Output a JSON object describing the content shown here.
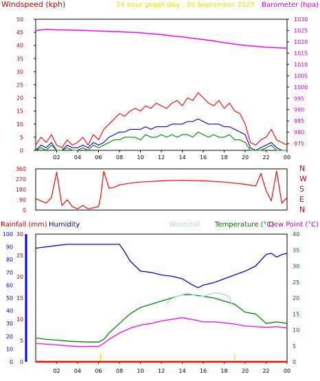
{
  "chart_data": [
    {
      "type": "line",
      "header": {
        "left": "Windspeed (kph)",
        "center": "24 hour graph day : 10 September 2025",
        "right": "Barometer (hpa)"
      },
      "left_axis": {
        "ticks": [
          0,
          5,
          10,
          15,
          20,
          25,
          30,
          35,
          40,
          45,
          50
        ],
        "range": [
          0,
          50
        ]
      },
      "right_axis": {
        "ticks": [
          975,
          980,
          985,
          990,
          995,
          1000,
          1005,
          1010,
          1015,
          1020,
          1025,
          1030
        ],
        "range": [
          972,
          1030
        ]
      },
      "x_ticks": [
        "02",
        "04",
        "06",
        "08",
        "10",
        "12",
        "14",
        "16",
        "18",
        "20",
        "22",
        "00"
      ],
      "series": [
        {
          "color": "#ff0000",
          "axis": "left",
          "x": [
            0,
            0.5,
            1,
            1.5,
            2,
            2.5,
            3,
            3.5,
            4,
            4.5,
            5,
            5.5,
            6,
            6.5,
            7,
            7.5,
            8,
            8.5,
            9,
            9.5,
            10,
            10.5,
            11,
            11.5,
            12,
            12.5,
            13,
            13.5,
            14,
            14.5,
            15,
            15.5,
            16,
            16.5,
            17,
            17.5,
            18,
            18.5,
            19,
            19.5,
            20,
            20.5,
            21,
            21.5,
            22,
            22.5,
            23,
            23.5,
            24
          ],
          "values": [
            2,
            5,
            3,
            6,
            2,
            1,
            4,
            2,
            3,
            5,
            2,
            6,
            4,
            8,
            10,
            12,
            14,
            13,
            15,
            16,
            15,
            17,
            16,
            18,
            17,
            16,
            18,
            19,
            17,
            20,
            19,
            22,
            20,
            18,
            17,
            19,
            16,
            18,
            15,
            14,
            10,
            3,
            2,
            4,
            5,
            8,
            4,
            3,
            2
          ]
        },
        {
          "color": "#0000cc",
          "axis": "left",
          "x": [
            0,
            0.5,
            1,
            1.5,
            2,
            2.5,
            3,
            3.5,
            4,
            4.5,
            5,
            5.5,
            6,
            6.5,
            7,
            7.5,
            8,
            8.5,
            9,
            9.5,
            10,
            10.5,
            11,
            11.5,
            12,
            12.5,
            13,
            13.5,
            14,
            14.5,
            15,
            15.5,
            16,
            16.5,
            17,
            17.5,
            18,
            18.5,
            19,
            19.5,
            20,
            20.5,
            21,
            21.5,
            22,
            22.5,
            23,
            23.5,
            24
          ],
          "values": [
            0,
            2,
            1,
            3,
            0,
            0,
            2,
            1,
            1,
            2,
            1,
            3,
            2,
            3,
            5,
            6,
            7,
            7,
            8,
            8,
            8,
            9,
            8,
            9,
            9,
            9,
            10,
            10,
            10,
            11,
            11,
            12,
            11,
            10,
            10,
            10,
            9,
            9,
            8,
            7,
            6,
            1,
            0,
            1,
            2,
            3,
            1,
            0,
            0
          ]
        },
        {
          "color": "#008000",
          "axis": "left",
          "x": [
            0,
            0.5,
            1,
            1.5,
            2,
            2.5,
            3,
            3.5,
            4,
            4.5,
            5,
            5.5,
            6,
            6.5,
            7,
            7.5,
            8,
            8.5,
            9,
            9.5,
            10,
            10.5,
            11,
            11.5,
            12,
            12.5,
            13,
            13.5,
            14,
            14.5,
            15,
            15.5,
            16,
            16.5,
            17,
            17.5,
            18,
            18.5,
            19,
            19.5,
            20,
            20.5,
            21,
            21.5,
            22,
            22.5,
            23,
            23.5,
            24
          ],
          "values": [
            0,
            1,
            0,
            2,
            0,
            0,
            1,
            0,
            0,
            1,
            0,
            2,
            1,
            2,
            3,
            4,
            4,
            5,
            5,
            5,
            4,
            6,
            5,
            5,
            6,
            5,
            6,
            5,
            6,
            6,
            5,
            7,
            6,
            5,
            6,
            5,
            5,
            6,
            4,
            4,
            3,
            0,
            0,
            0,
            1,
            2,
            0,
            0,
            0
          ]
        },
        {
          "color": "#ff00ff",
          "axis": "right",
          "x": [
            0,
            1,
            2,
            3,
            4,
            5,
            6,
            7,
            8,
            9,
            10,
            11,
            12,
            13,
            14,
            15,
            16,
            17,
            18,
            19,
            20,
            21,
            22,
            23,
            24
          ],
          "values": [
            1025,
            1025.5,
            1025.3,
            1025.2,
            1025.1,
            1025,
            1024.8,
            1024.6,
            1024.5,
            1024.2,
            1024,
            1023.6,
            1023.2,
            1022.6,
            1022.2,
            1021.6,
            1021,
            1020.4,
            1019.6,
            1019,
            1018.4,
            1018,
            1017.6,
            1017.4,
            1017.2
          ]
        }
      ]
    },
    {
      "type": "line",
      "right_labels": [
        "N",
        "W",
        "S",
        "E",
        "N"
      ],
      "left_axis": {
        "ticks": [
          0,
          90,
          180,
          270,
          360
        ],
        "range": [
          0,
          360
        ]
      },
      "series": [
        {
          "color": "#ff0000",
          "x": [
            0,
            0.5,
            1,
            1.5,
            2,
            2.5,
            3,
            3.5,
            4,
            4.5,
            5,
            5.5,
            6,
            6.2,
            6.5,
            7,
            7.5,
            8,
            9,
            10,
            11,
            12,
            13,
            14,
            15,
            16,
            17,
            18,
            19,
            20,
            21,
            21.5,
            22,
            22.5,
            23,
            23.5,
            24
          ],
          "values": [
            100,
            80,
            60,
            110,
            330,
            40,
            90,
            30,
            10,
            40,
            10,
            20,
            30,
            120,
            340,
            190,
            200,
            220,
            235,
            245,
            250,
            255,
            258,
            260,
            258,
            255,
            250,
            245,
            235,
            225,
            210,
            320,
            170,
            80,
            340,
            60,
            110
          ]
        }
      ]
    },
    {
      "type": "line",
      "header": {
        "rainfall": "Rainfall (mm)",
        "humidity": "Humidity",
        "windchill": "Windchill",
        "temperature": "Temperature (°C)",
        "dewpoint": "Dew Point (°C)"
      },
      "humidity_axis": {
        "ticks": [
          0,
          10,
          20,
          30,
          40,
          50,
          60,
          70,
          80,
          90,
          100
        ],
        "range": [
          0,
          100
        ]
      },
      "rainfall_axis": {
        "ticks": [
          0,
          5,
          10,
          15,
          20,
          25,
          30
        ],
        "range": [
          0,
          30
        ]
      },
      "temperature_axis": {
        "ticks": [
          0,
          5,
          10,
          15,
          20,
          25,
          30,
          35,
          40
        ],
        "range": [
          0,
          40
        ]
      },
      "x_ticks": [
        "02",
        "04",
        "06",
        "08",
        "10",
        "12",
        "14",
        "16",
        "18",
        "20",
        "22",
        "00"
      ],
      "series": [
        {
          "name": "Humidity",
          "color": "#0000cc",
          "axis": "humidity",
          "x": [
            0,
            1,
            2,
            3,
            4,
            5,
            6,
            7,
            8,
            8.5,
            9,
            10,
            11,
            12,
            13,
            14,
            15,
            15.5,
            16,
            17,
            18,
            19,
            20,
            21,
            22,
            22.5,
            23,
            23.5,
            24
          ],
          "values": [
            89,
            90,
            91,
            92,
            92,
            92,
            92,
            92,
            92,
            86,
            79,
            71,
            70,
            68,
            67,
            65,
            60,
            58,
            60,
            62,
            65,
            68,
            71,
            75,
            84,
            85,
            82,
            84,
            85
          ]
        },
        {
          "name": "Temperature (°C)",
          "color": "#008000",
          "axis": "temperature",
          "x": [
            0,
            1,
            2,
            3,
            4,
            5,
            6,
            6.5,
            7,
            8,
            9,
            10,
            11,
            12,
            13,
            14,
            15,
            16,
            17,
            18,
            19,
            20,
            21,
            22,
            23,
            24
          ],
          "values": [
            7.5,
            7,
            6.8,
            6.5,
            6.3,
            6.2,
            6.2,
            7,
            9,
            12,
            15,
            17,
            18,
            19,
            20,
            21,
            21,
            20.5,
            20,
            19,
            18,
            15.5,
            15,
            12,
            12.5,
            12
          ]
        },
        {
          "name": "Dew Point (°C)",
          "color": "#ff00ff",
          "axis": "temperature",
          "x": [
            0,
            1,
            2,
            3,
            4,
            5,
            6,
            6.5,
            7,
            8,
            9,
            10,
            11,
            12,
            13,
            14,
            15,
            16,
            17,
            18,
            19,
            20,
            21,
            22,
            23,
            24
          ],
          "values": [
            5.8,
            5.5,
            5.3,
            5,
            4.8,
            4.8,
            4.8,
            5.8,
            7,
            9,
            10.5,
            11.5,
            12,
            12.8,
            13.3,
            13.8,
            13.2,
            12.5,
            12.5,
            12.2,
            11.8,
            11.2,
            11,
            10.8,
            11,
            10.6
          ]
        },
        {
          "name": "Windchill",
          "color": "#b0d0ec",
          "axis": "temperature",
          "x": [
            12.5,
            12.8,
            13.5,
            14,
            14.5,
            15,
            15.5,
            16,
            16.5,
            17,
            17.5,
            18,
            18.5,
            18.7
          ],
          "values": [
            18,
            19.5,
            20.5,
            21,
            21.5,
            21,
            20.5,
            20.5,
            21,
            21.5,
            21.5,
            21,
            20.5,
            18
          ]
        },
        {
          "name": "Rainfall (mm)",
          "color": "#ff0000",
          "axis": "rainfall",
          "x": [
            0,
            24
          ],
          "values": [
            0,
            0
          ]
        }
      ]
    }
  ]
}
